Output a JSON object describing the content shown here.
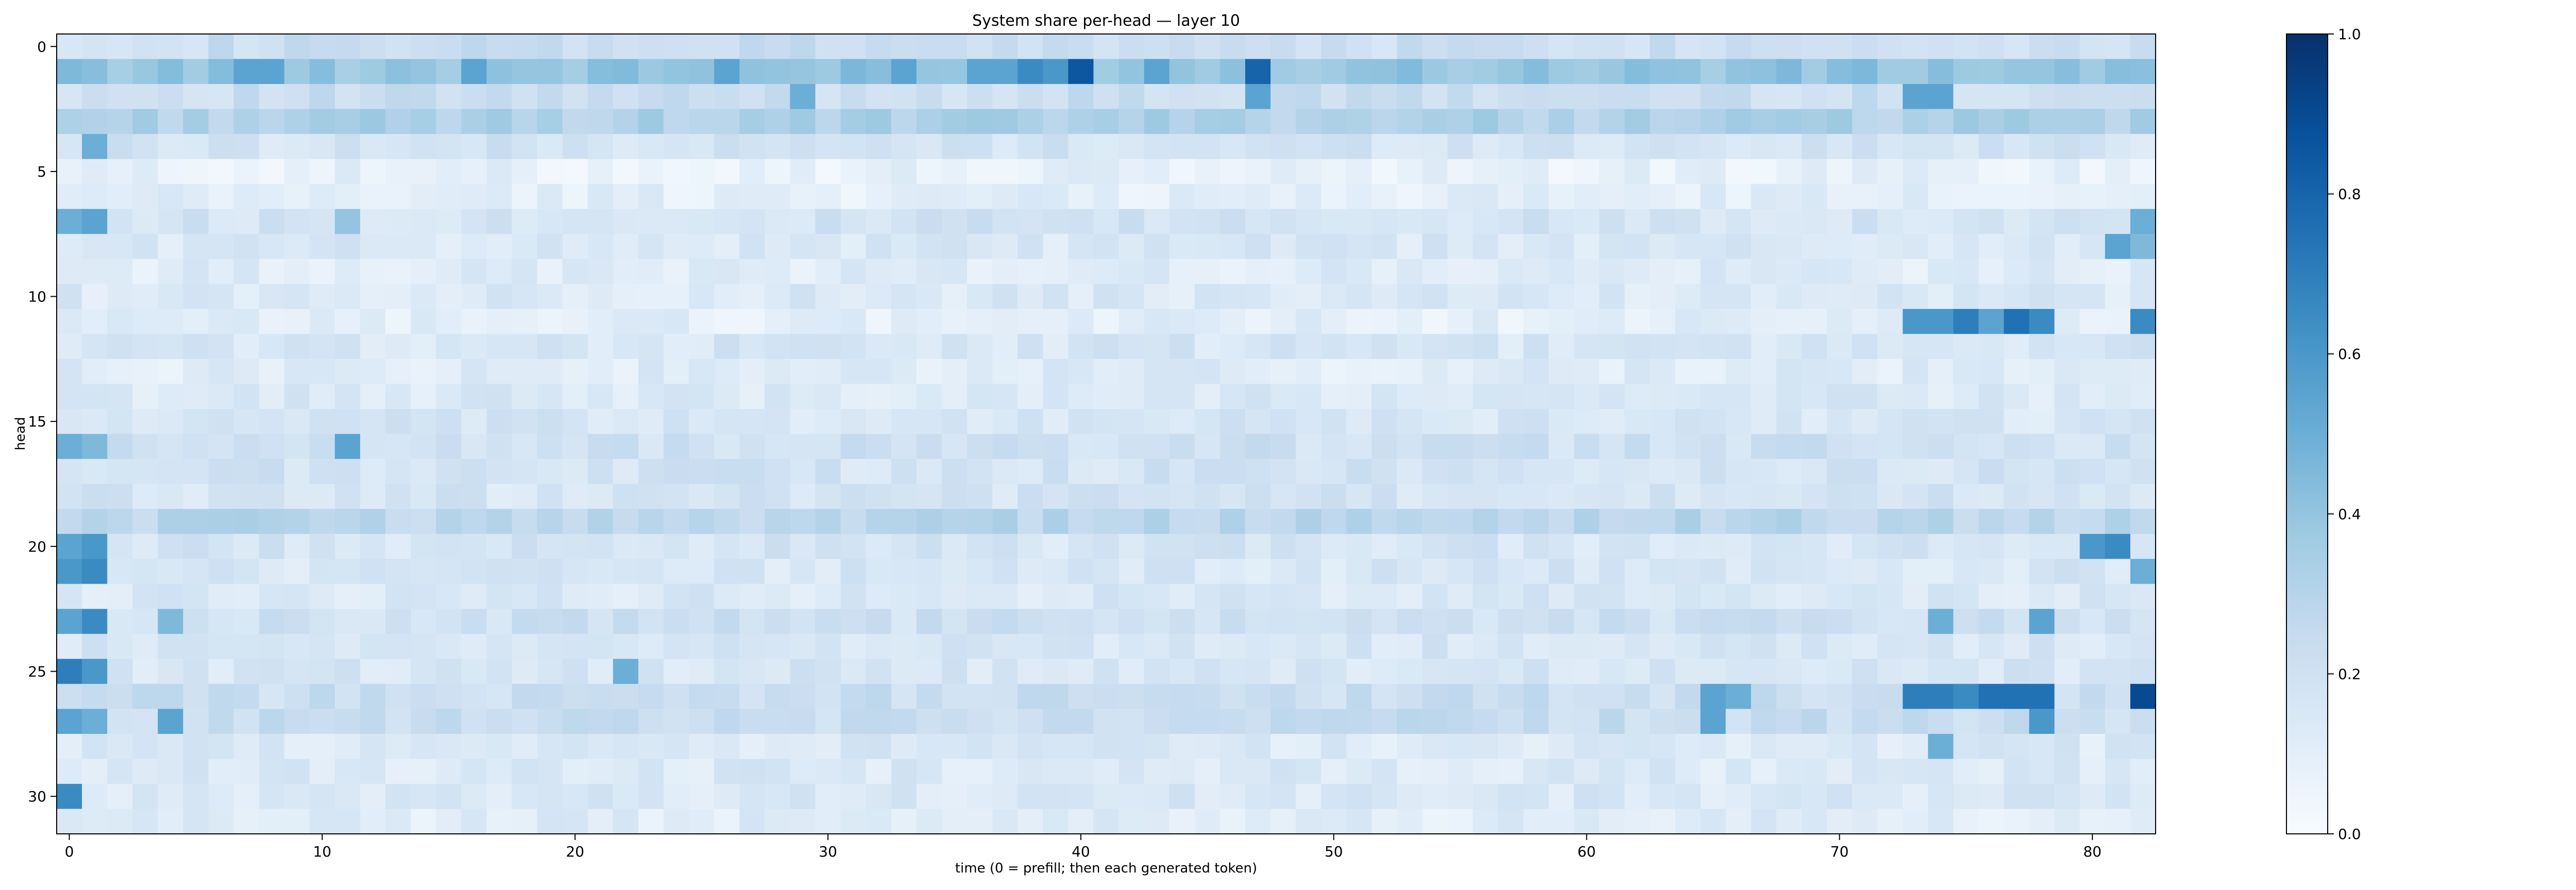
{
  "chart_data": {
    "type": "heatmap",
    "title": "System share per-head — layer 10",
    "xlabel": "time (0 = prefill; then each generated token)",
    "ylabel": "head",
    "x_range": [
      0,
      82
    ],
    "y_range": [
      0,
      31
    ],
    "x_ticks": [
      0,
      10,
      20,
      30,
      40,
      50,
      60,
      70,
      80
    ],
    "y_ticks": [
      0,
      5,
      10,
      15,
      20,
      25,
      30
    ],
    "colorbar": {
      "colormap": "Blues",
      "range": [
        0.0,
        1.0
      ],
      "ticks": [
        0.0,
        0.2,
        0.4,
        0.6,
        0.8,
        1.0
      ],
      "tick_labels": [
        "0.0",
        "0.2",
        "0.4",
        "0.6",
        "0.8",
        "1.0"
      ],
      "stops": [
        "#f7fbff",
        "#deebf7",
        "#c6dbef",
        "#9ecae1",
        "#6baed6",
        "#4292c6",
        "#2171b5",
        "#08519c",
        "#08306b"
      ]
    },
    "row_base_values": [
      0.22,
      0.4,
      0.22,
      0.32,
      0.18,
      0.08,
      0.1,
      0.18,
      0.15,
      0.12,
      0.14,
      0.1,
      0.16,
      0.12,
      0.14,
      0.16,
      0.2,
      0.18,
      0.17,
      0.28,
      0.17,
      0.16,
      0.15,
      0.2,
      0.16,
      0.16,
      0.22,
      0.23,
      0.14,
      0.14,
      0.15,
      0.12
    ],
    "cell_overrides": [
      [
        1,
        40,
        0.85
      ],
      [
        1,
        47,
        0.8
      ],
      [
        1,
        38,
        0.65
      ],
      [
        1,
        39,
        0.6
      ],
      [
        1,
        7,
        0.55
      ],
      [
        1,
        8,
        0.55
      ],
      [
        1,
        16,
        0.55
      ],
      [
        1,
        26,
        0.55
      ],
      [
        1,
        33,
        0.55
      ],
      [
        1,
        36,
        0.55
      ],
      [
        1,
        37,
        0.55
      ],
      [
        1,
        43,
        0.55
      ],
      [
        2,
        29,
        0.5
      ],
      [
        2,
        47,
        0.55
      ],
      [
        2,
        73,
        0.55
      ],
      [
        2,
        74,
        0.55
      ],
      [
        4,
        1,
        0.5
      ],
      [
        7,
        0,
        0.5
      ],
      [
        7,
        1,
        0.55
      ],
      [
        7,
        11,
        0.4
      ],
      [
        7,
        82,
        0.5
      ],
      [
        8,
        81,
        0.55
      ],
      [
        8,
        82,
        0.45
      ],
      [
        11,
        73,
        0.6
      ],
      [
        11,
        74,
        0.6
      ],
      [
        11,
        75,
        0.7
      ],
      [
        11,
        76,
        0.55
      ],
      [
        11,
        77,
        0.75
      ],
      [
        11,
        78,
        0.65
      ],
      [
        11,
        82,
        0.65
      ],
      [
        16,
        0,
        0.5
      ],
      [
        16,
        1,
        0.45
      ],
      [
        16,
        11,
        0.55
      ],
      [
        20,
        0,
        0.55
      ],
      [
        20,
        1,
        0.6
      ],
      [
        20,
        80,
        0.6
      ],
      [
        20,
        81,
        0.65
      ],
      [
        21,
        0,
        0.6
      ],
      [
        21,
        1,
        0.65
      ],
      [
        21,
        82,
        0.5
      ],
      [
        23,
        0,
        0.55
      ],
      [
        23,
        1,
        0.65
      ],
      [
        23,
        4,
        0.45
      ],
      [
        23,
        74,
        0.5
      ],
      [
        23,
        78,
        0.55
      ],
      [
        25,
        0,
        0.7
      ],
      [
        25,
        1,
        0.6
      ],
      [
        25,
        22,
        0.5
      ],
      [
        26,
        65,
        0.55
      ],
      [
        26,
        66,
        0.5
      ],
      [
        26,
        73,
        0.7
      ],
      [
        26,
        74,
        0.7
      ],
      [
        26,
        75,
        0.65
      ],
      [
        26,
        76,
        0.75
      ],
      [
        26,
        77,
        0.75
      ],
      [
        26,
        78,
        0.75
      ],
      [
        26,
        82,
        0.9
      ],
      [
        27,
        0,
        0.55
      ],
      [
        27,
        1,
        0.5
      ],
      [
        27,
        4,
        0.55
      ],
      [
        27,
        65,
        0.55
      ],
      [
        27,
        78,
        0.6
      ],
      [
        28,
        74,
        0.5
      ],
      [
        30,
        0,
        0.65
      ]
    ]
  }
}
